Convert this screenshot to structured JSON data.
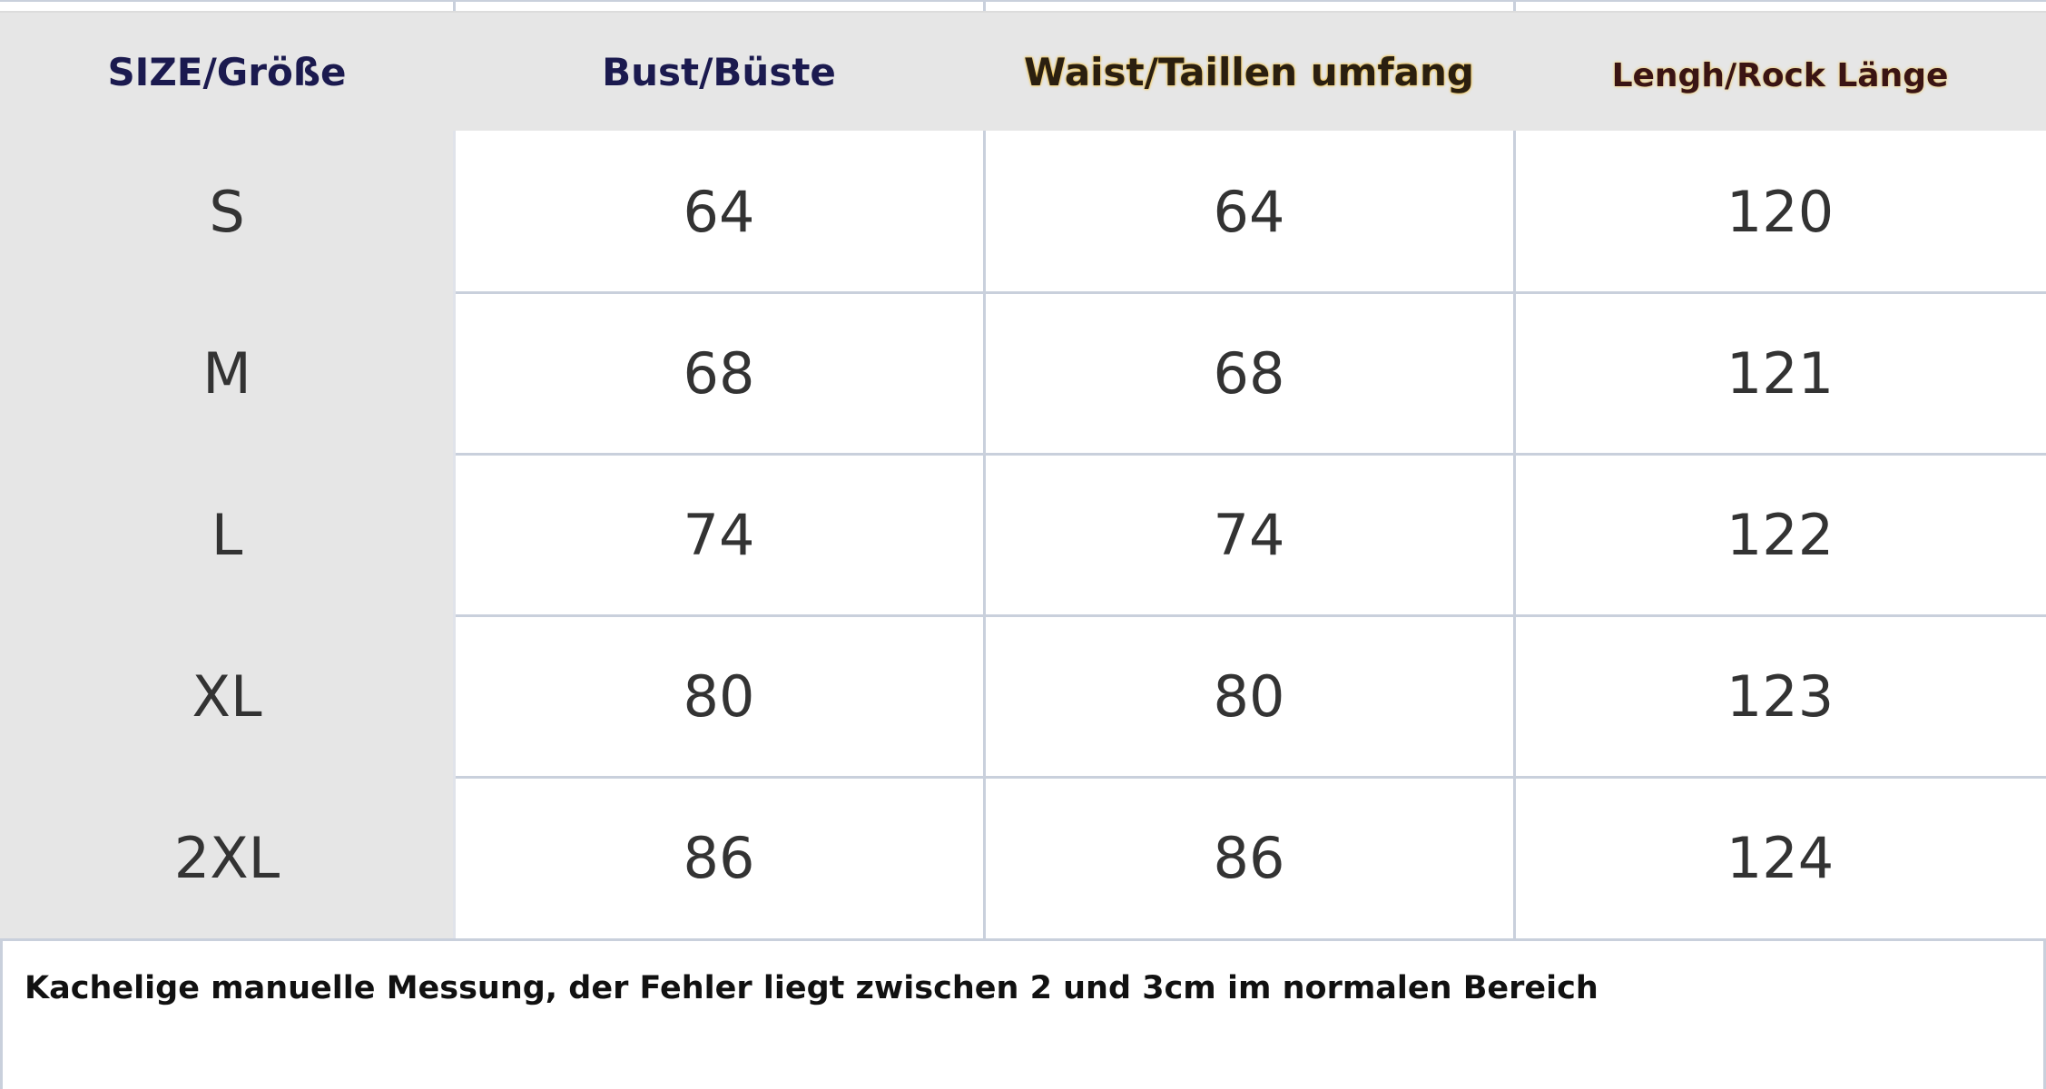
{
  "table": {
    "header": [
      "SIZE/Größe",
      "Bust/Büste",
      "Waist/Taillen umfang",
      "Lengh/Rock Länge"
    ],
    "rows": [
      [
        "S",
        64,
        64,
        120
      ],
      [
        "M",
        68,
        68,
        121
      ],
      [
        "L",
        74,
        74,
        122
      ],
      [
        "XL",
        80,
        80,
        123
      ],
      [
        "2XL",
        86,
        86,
        124
      ]
    ]
  },
  "note": "Kachelige manuelle Messung, der Fehler liegt zwischen 2 und 3cm im normalen Bereich"
}
